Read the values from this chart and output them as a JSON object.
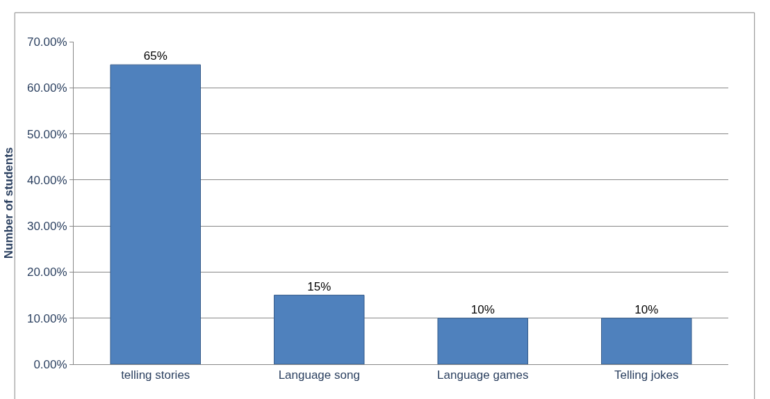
{
  "chart_data": {
    "type": "bar",
    "ylabel": "Number of students",
    "categories": [
      "telling stories",
      "Language song",
      "Language games",
      "Telling jokes"
    ],
    "values": [
      65,
      15,
      10,
      10
    ],
    "value_labels": [
      "65%",
      "15%",
      "10%",
      "10%"
    ],
    "color": "#4f81bd",
    "ylim": [
      0,
      70
    ],
    "yticks": [
      {
        "value": 0,
        "label": "0.00%"
      },
      {
        "value": 10,
        "label": "10.00%"
      },
      {
        "value": 20,
        "label": "20.00%"
      },
      {
        "value": 30,
        "label": "30.00%"
      },
      {
        "value": 40,
        "label": "40.00%"
      },
      {
        "value": 50,
        "label": "50.00%"
      },
      {
        "value": 60,
        "label": "60.00%"
      },
      {
        "value": 70,
        "label": "70.00%"
      }
    ],
    "grid": "y"
  }
}
